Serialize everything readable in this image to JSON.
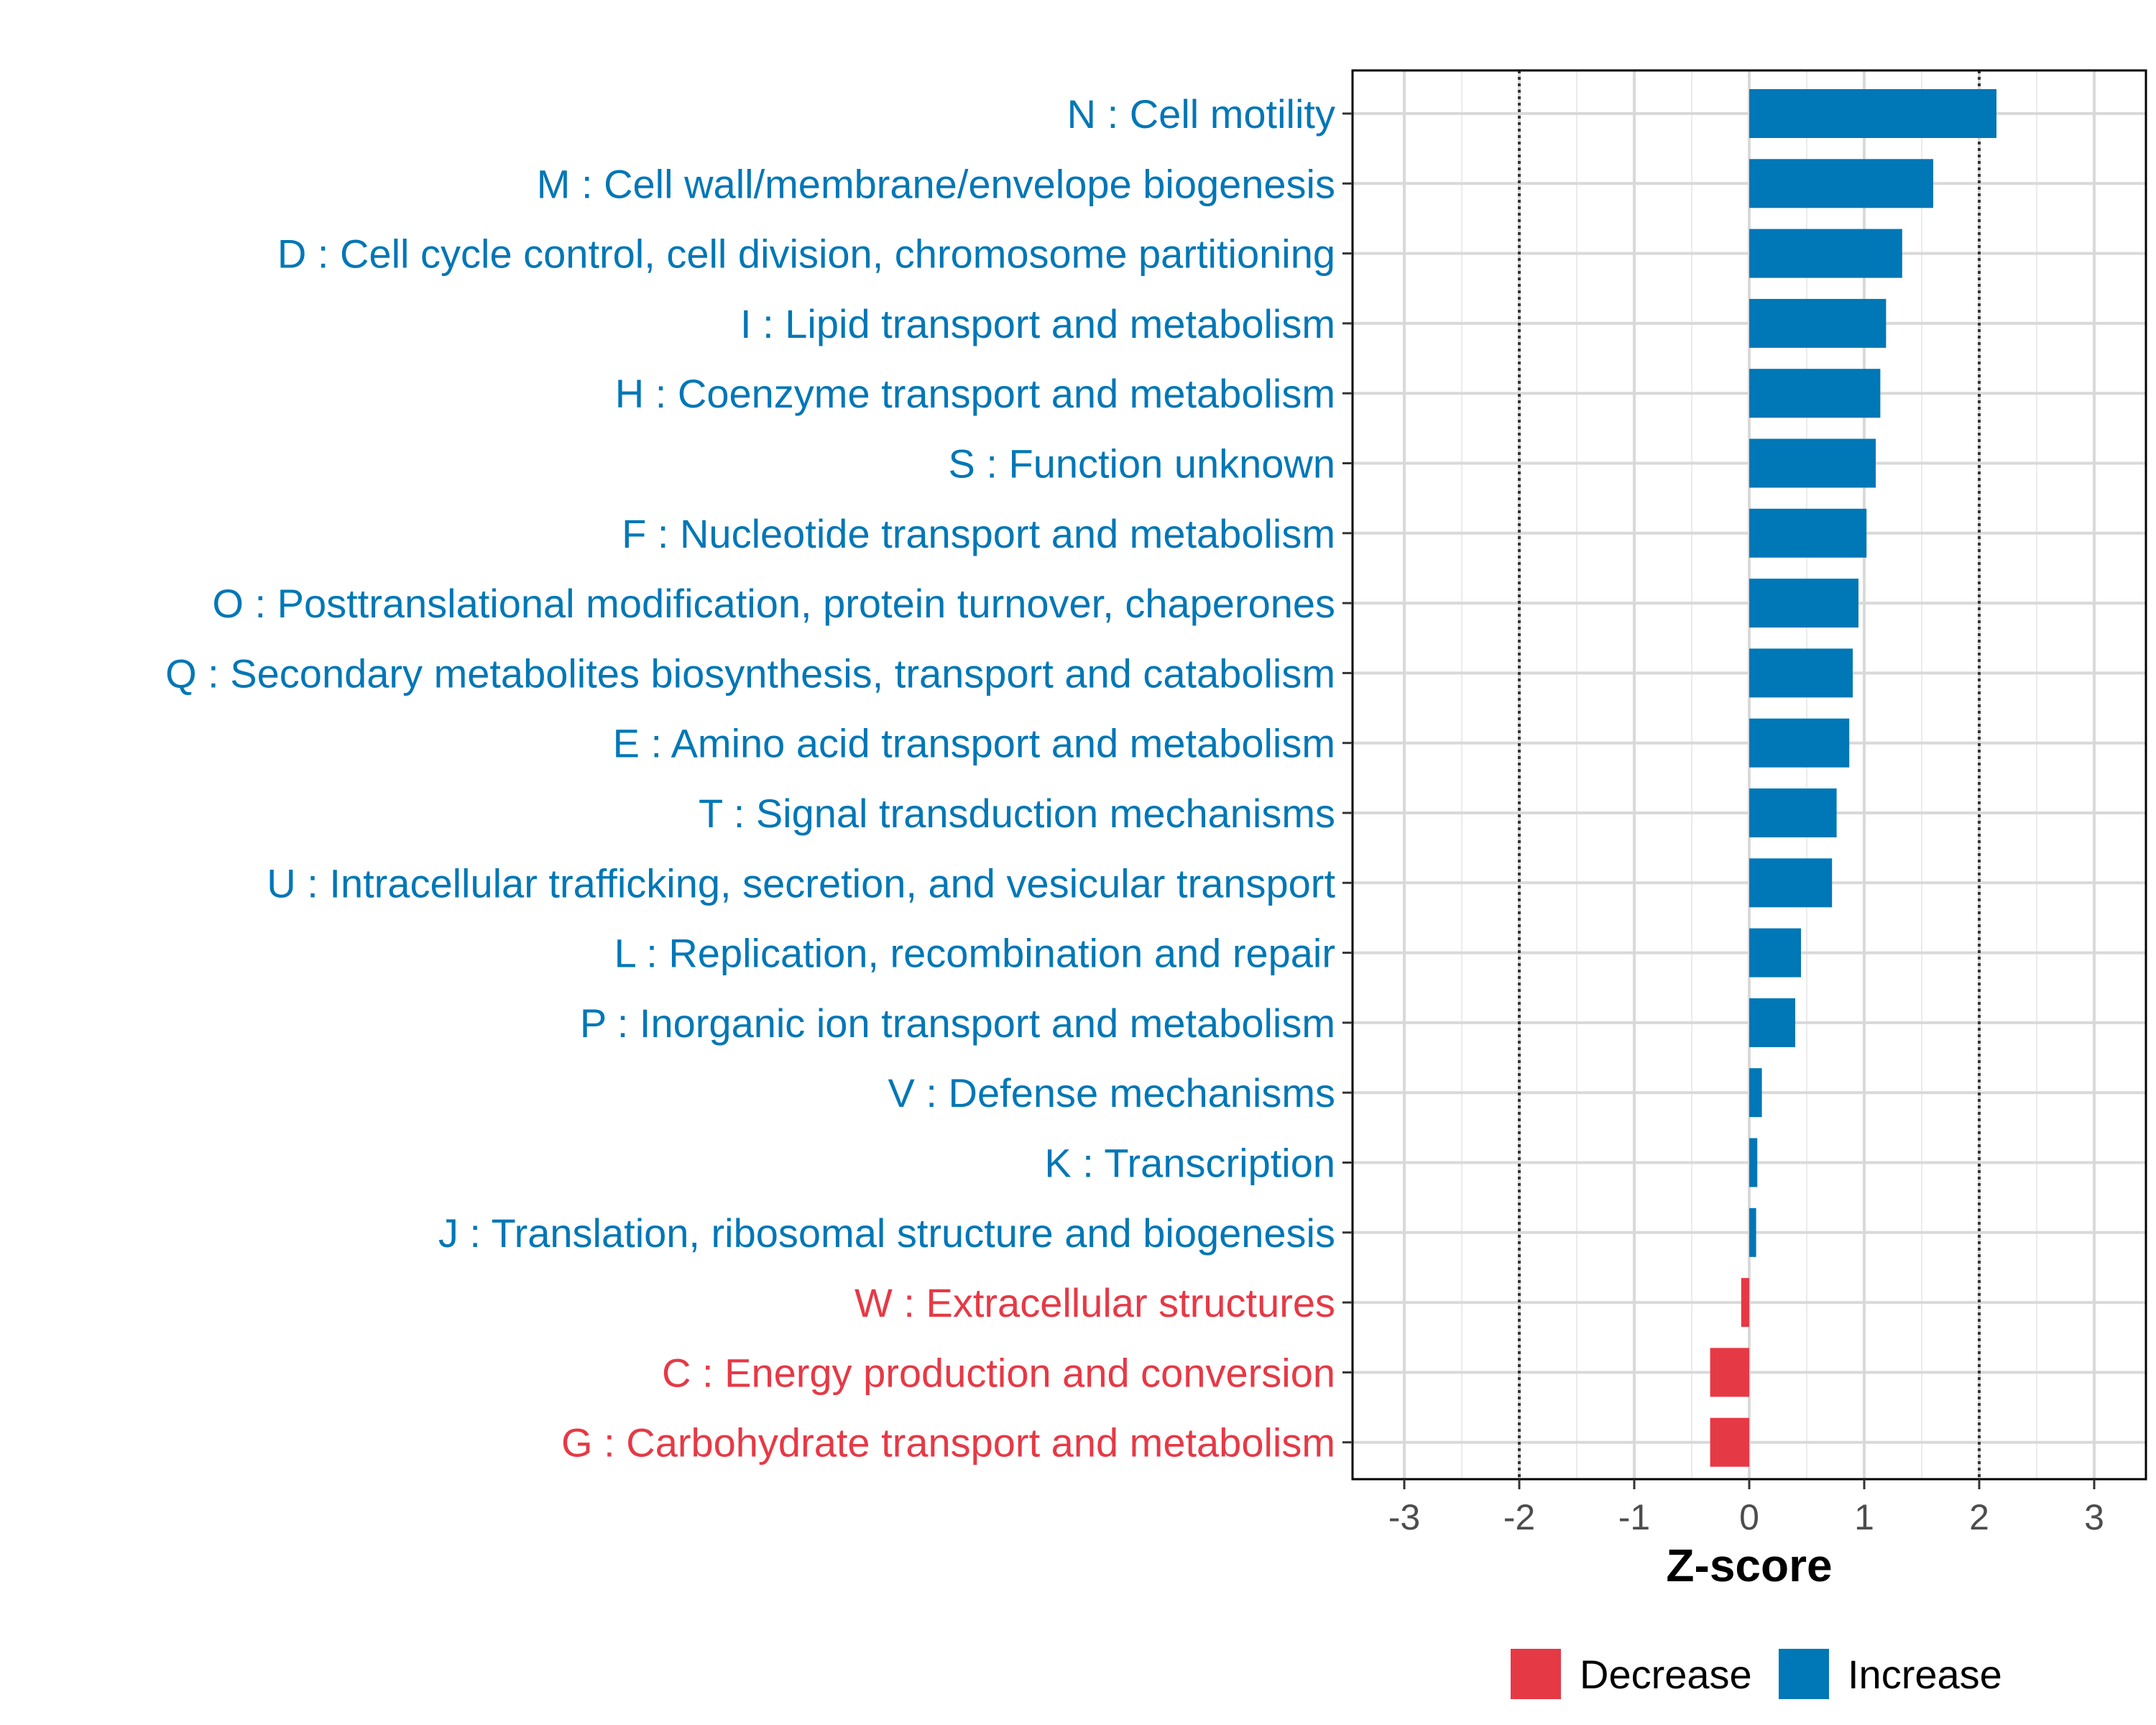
{
  "chart_data": {
    "type": "bar",
    "orientation": "horizontal",
    "xlabel": "Z-score",
    "ylabel": "",
    "xlim": [
      -3.45,
      3.45
    ],
    "xticks": [
      -3,
      -2,
      -1,
      0,
      1,
      2,
      3
    ],
    "reference_lines": [
      -2,
      2
    ],
    "grid": true,
    "legend_position": "bottom",
    "colors": {
      "Decrease": "#e63946",
      "Increase": "#0077b6"
    },
    "categories": [
      "N : Cell motility",
      "M : Cell wall/membrane/envelope biogenesis",
      "D : Cell cycle control, cell division, chromosome partitioning",
      "I : Lipid transport and metabolism",
      "H : Coenzyme transport and metabolism",
      "S : Function unknown",
      "F : Nucleotide transport and metabolism",
      "O : Posttranslational modification, protein turnover, chaperones",
      "Q : Secondary metabolites biosynthesis, transport and catabolism",
      "E : Amino acid transport and metabolism",
      "T : Signal transduction mechanisms",
      "U : Intracellular trafficking, secretion, and vesicular transport",
      "L : Replication, recombination and repair",
      "P : Inorganic ion transport and metabolism",
      "V : Defense mechanisms",
      "K : Transcription",
      "J : Translation, ribosomal structure and biogenesis",
      "W : Extracellular structures",
      "C : Energy production and conversion",
      "G : Carbohydrate transport and metabolism"
    ],
    "values": [
      2.15,
      1.6,
      1.33,
      1.19,
      1.14,
      1.1,
      1.02,
      0.95,
      0.9,
      0.87,
      0.76,
      0.72,
      0.45,
      0.4,
      0.11,
      0.07,
      0.06,
      -0.07,
      -0.34,
      -0.34
    ],
    "groups": [
      "Increase",
      "Increase",
      "Increase",
      "Increase",
      "Increase",
      "Increase",
      "Increase",
      "Increase",
      "Increase",
      "Increase",
      "Increase",
      "Increase",
      "Increase",
      "Increase",
      "Increase",
      "Increase",
      "Increase",
      "Decrease",
      "Decrease",
      "Decrease"
    ],
    "legend": [
      {
        "name": "Decrease",
        "color": "#e63946"
      },
      {
        "name": "Increase",
        "color": "#0077b6"
      }
    ]
  }
}
